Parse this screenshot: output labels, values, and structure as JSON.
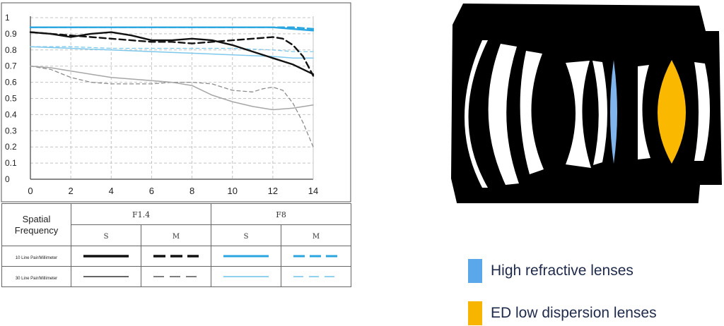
{
  "chart_data": {
    "type": "line",
    "xlim": [
      0,
      14
    ],
    "ylim": [
      0,
      1
    ],
    "x_ticks": [
      "0",
      "2",
      "4",
      "6",
      "8",
      "10",
      "12",
      "14"
    ],
    "y_ticks": [
      "0",
      "0.1",
      "0.2",
      "0.3",
      "0.4",
      "0.5",
      "0.6",
      "0.7",
      "0.8",
      "0.9",
      "1"
    ],
    "grid": true,
    "series": [
      {
        "aperture": "F8",
        "frequency": "30 Line Pair/Millimeter",
        "orientation": "M",
        "color": "#7ec8ec",
        "style": "dashed-thin",
        "x": [
          0,
          2,
          4,
          6,
          8,
          10,
          12,
          13,
          14
        ],
        "y": [
          0.82,
          0.82,
          0.81,
          0.81,
          0.81,
          0.81,
          0.8,
          0.79,
          0.79
        ]
      },
      {
        "aperture": "F8",
        "frequency": "30 Line Pair/Millimeter",
        "orientation": "S",
        "color": "#7ec8ec",
        "style": "solid-thin",
        "x": [
          0,
          2,
          4,
          6,
          8,
          10,
          12,
          13,
          14
        ],
        "y": [
          0.82,
          0.81,
          0.8,
          0.79,
          0.78,
          0.77,
          0.76,
          0.75,
          0.75
        ]
      },
      {
        "aperture": "F8",
        "frequency": "10 Line Pair/Millimeter",
        "orientation": "M",
        "color": "#29a6df",
        "style": "dashed-thick",
        "x": [
          0,
          2,
          4,
          6,
          8,
          10,
          12,
          13,
          14
        ],
        "y": [
          0.94,
          0.94,
          0.94,
          0.94,
          0.94,
          0.94,
          0.94,
          0.94,
          0.93
        ]
      },
      {
        "aperture": "F8",
        "frequency": "10 Line Pair/Millimeter",
        "orientation": "S",
        "color": "#29a6df",
        "style": "solid-thick",
        "x": [
          0,
          2,
          4,
          6,
          8,
          10,
          12,
          13,
          14
        ],
        "y": [
          0.94,
          0.94,
          0.94,
          0.94,
          0.94,
          0.94,
          0.94,
          0.93,
          0.92
        ]
      },
      {
        "aperture": "F1.4",
        "frequency": "30 Line Pair/Millimeter",
        "orientation": "M",
        "color": "#8c8c8c",
        "style": "dashed-thin",
        "x": [
          0,
          1,
          2,
          3,
          4,
          5,
          6,
          7,
          8,
          9,
          10,
          11,
          11.5,
          12,
          12.5,
          13,
          13.5,
          14
        ],
        "y": [
          0.7,
          0.68,
          0.63,
          0.6,
          0.59,
          0.59,
          0.59,
          0.6,
          0.6,
          0.59,
          0.55,
          0.54,
          0.56,
          0.57,
          0.55,
          0.47,
          0.35,
          0.2
        ]
      },
      {
        "aperture": "F1.4",
        "frequency": "30 Line Pair/Millimeter",
        "orientation": "S",
        "color": "#a6a6a6",
        "style": "solid-thin",
        "x": [
          0,
          1,
          2,
          3,
          4,
          5,
          6,
          7,
          8,
          9,
          10,
          11,
          12,
          13,
          14
        ],
        "y": [
          0.7,
          0.69,
          0.67,
          0.65,
          0.63,
          0.62,
          0.61,
          0.6,
          0.58,
          0.52,
          0.48,
          0.45,
          0.43,
          0.44,
          0.46
        ]
      },
      {
        "aperture": "F1.4",
        "frequency": "10 Line Pair/Millimeter",
        "orientation": "M",
        "color": "#111111",
        "style": "dashed-thick",
        "x": [
          0,
          1,
          2,
          3,
          4,
          5,
          6,
          7,
          8,
          9,
          10,
          11,
          12,
          12.5,
          13,
          13.5,
          14
        ],
        "y": [
          0.91,
          0.9,
          0.89,
          0.88,
          0.87,
          0.86,
          0.85,
          0.85,
          0.84,
          0.85,
          0.86,
          0.87,
          0.88,
          0.87,
          0.83,
          0.76,
          0.64
        ]
      },
      {
        "aperture": "F1.4",
        "frequency": "10 Line Pair/Millimeter",
        "orientation": "S",
        "color": "#111111",
        "style": "solid-thick",
        "x": [
          0,
          1,
          2,
          3,
          4,
          5,
          6,
          7,
          8,
          9,
          10,
          11,
          12,
          13,
          14
        ],
        "y": [
          0.91,
          0.9,
          0.88,
          0.9,
          0.91,
          0.89,
          0.86,
          0.86,
          0.87,
          0.86,
          0.83,
          0.79,
          0.75,
          0.71,
          0.65
        ]
      }
    ]
  },
  "legend_table": {
    "header_label": "Spatial\nFrequency",
    "apertures": [
      "F1.4",
      "F8"
    ],
    "orientations": [
      "S",
      "M",
      "S",
      "M"
    ],
    "rows": [
      "10 Line Pair/Millimeter",
      "30 Line Pair/Millimeter"
    ]
  },
  "lens_legend": [
    {
      "label": "High refractive lenses",
      "color": "#5aa7ea"
    },
    {
      "label": "ED low dispersion lenses",
      "color": "#f7b500"
    }
  ],
  "lens_diagram": {
    "body_color": "#000000",
    "element_color": "#ffffff",
    "high_refractive_color": "#7fb5ec",
    "ed_color": "#fbb800"
  }
}
